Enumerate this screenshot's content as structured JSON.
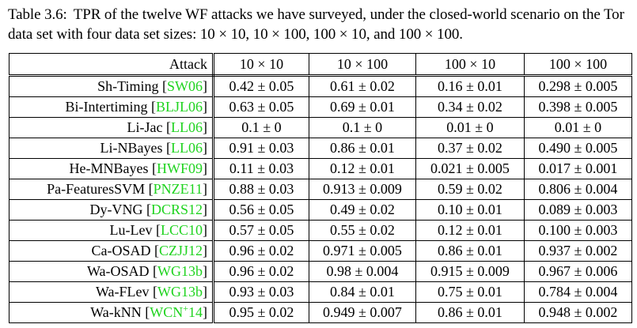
{
  "caption": {
    "label": "Table 3.6:",
    "text": "TPR of the twelve WF attacks we have surveyed, under the closed-world scenario on the Tor data set with four data set sizes: 10 × 10, 10 × 100, 100 × 10, and 100 × 100."
  },
  "table": {
    "header": {
      "attack": "Attack",
      "cols": [
        "10 × 10",
        "10 × 100",
        "100 × 10",
        "100 × 100"
      ]
    },
    "rows": [
      {
        "name": "Sh-Timing",
        "cite": "SW06",
        "cite_sup": "",
        "values": [
          "0.42 ± 0.05",
          "0.61 ± 0.02",
          "0.16 ± 0.01",
          "0.298 ± 0.005"
        ]
      },
      {
        "name": "Bi-Intertiming",
        "cite": "BLJL06",
        "cite_sup": "",
        "values": [
          "0.63 ± 0.05",
          "0.69 ± 0.01",
          "0.34 ± 0.02",
          "0.398 ± 0.005"
        ]
      },
      {
        "name": "Li-Jac",
        "cite": "LL06",
        "cite_sup": "",
        "values": [
          "0.1 ± 0",
          "0.1 ± 0",
          "0.01 ± 0",
          "0.01 ± 0"
        ]
      },
      {
        "name": "Li-NBayes",
        "cite": "LL06",
        "cite_sup": "",
        "values": [
          "0.91 ± 0.03",
          "0.86 ± 0.01",
          "0.37 ± 0.02",
          "0.490 ± 0.005"
        ]
      },
      {
        "name": "He-MNBayes",
        "cite": "HWF09",
        "cite_sup": "",
        "values": [
          "0.11 ± 0.03",
          "0.12 ± 0.01",
          "0.021 ± 0.005",
          "0.017 ± 0.001"
        ]
      },
      {
        "name": "Pa-FeaturesSVM",
        "cite": "PNZE11",
        "cite_sup": "",
        "values": [
          "0.88 ± 0.03",
          "0.913 ± 0.009",
          "0.59 ± 0.02",
          "0.806 ± 0.004"
        ]
      },
      {
        "name": "Dy-VNG",
        "cite": "DCRS12",
        "cite_sup": "",
        "values": [
          "0.56 ± 0.05",
          "0.49 ± 0.02",
          "0.10 ± 0.01",
          "0.089 ± 0.003"
        ]
      },
      {
        "name": "Lu-Lev",
        "cite": "LCC10",
        "cite_sup": "",
        "values": [
          "0.57 ± 0.05",
          "0.55 ± 0.02",
          "0.12 ± 0.01",
          "0.100 ± 0.003"
        ]
      },
      {
        "name": "Ca-OSAD",
        "cite": "CZJJ12",
        "cite_sup": "",
        "values": [
          "0.96 ± 0.02",
          "0.971 ± 0.005",
          "0.86 ± 0.01",
          "0.937 ± 0.002"
        ]
      },
      {
        "name": "Wa-OSAD",
        "cite": "WG13b",
        "cite_sup": "",
        "values": [
          "0.96 ± 0.02",
          "0.98 ± 0.004",
          "0.915 ± 0.009",
          "0.967 ± 0.006"
        ]
      },
      {
        "name": "Wa-FLev",
        "cite": "WG13b",
        "cite_sup": "",
        "values": [
          "0.93 ± 0.03",
          "0.84 ± 0.01",
          "0.75 ± 0.01",
          "0.784 ± 0.004"
        ]
      },
      {
        "name": "Wa-kNN",
        "cite": "WCN",
        "cite_sup": "+",
        "cite_suffix": "14",
        "values": [
          "0.95 ± 0.02",
          "0.949 ± 0.007",
          "0.86 ± 0.01",
          "0.948 ± 0.002"
        ]
      }
    ]
  },
  "colors": {
    "citation": "#1fd31f",
    "text": "#000000",
    "background": "#ffffff"
  }
}
